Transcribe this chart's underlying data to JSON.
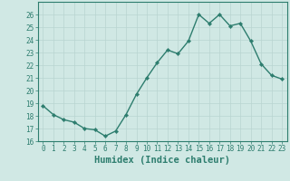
{
  "x": [
    0,
    1,
    2,
    3,
    4,
    5,
    6,
    7,
    8,
    9,
    10,
    11,
    12,
    13,
    14,
    15,
    16,
    17,
    18,
    19,
    20,
    21,
    22,
    23
  ],
  "y": [
    18.8,
    18.1,
    17.7,
    17.5,
    17.0,
    16.9,
    16.4,
    16.8,
    18.1,
    19.7,
    21.0,
    22.2,
    23.2,
    22.9,
    23.9,
    26.0,
    25.3,
    26.0,
    25.1,
    25.3,
    23.9,
    22.1,
    21.2,
    20.9
  ],
  "line_color": "#2d7d6e",
  "marker": "D",
  "marker_size": 2.2,
  "bg_color": "#d0e8e4",
  "grid_color": "#b8d4d0",
  "xlabel": "Humidex (Indice chaleur)",
  "ylim": [
    16,
    27
  ],
  "xlim": [
    -0.5,
    23.5
  ],
  "yticks": [
    16,
    17,
    18,
    19,
    20,
    21,
    22,
    23,
    24,
    25,
    26
  ],
  "xticks": [
    0,
    1,
    2,
    3,
    4,
    5,
    6,
    7,
    8,
    9,
    10,
    11,
    12,
    13,
    14,
    15,
    16,
    17,
    18,
    19,
    20,
    21,
    22,
    23
  ],
  "tick_label_fontsize": 5.5,
  "xlabel_fontsize": 7.5,
  "axis_color": "#2d7d6e",
  "linewidth": 1.0
}
